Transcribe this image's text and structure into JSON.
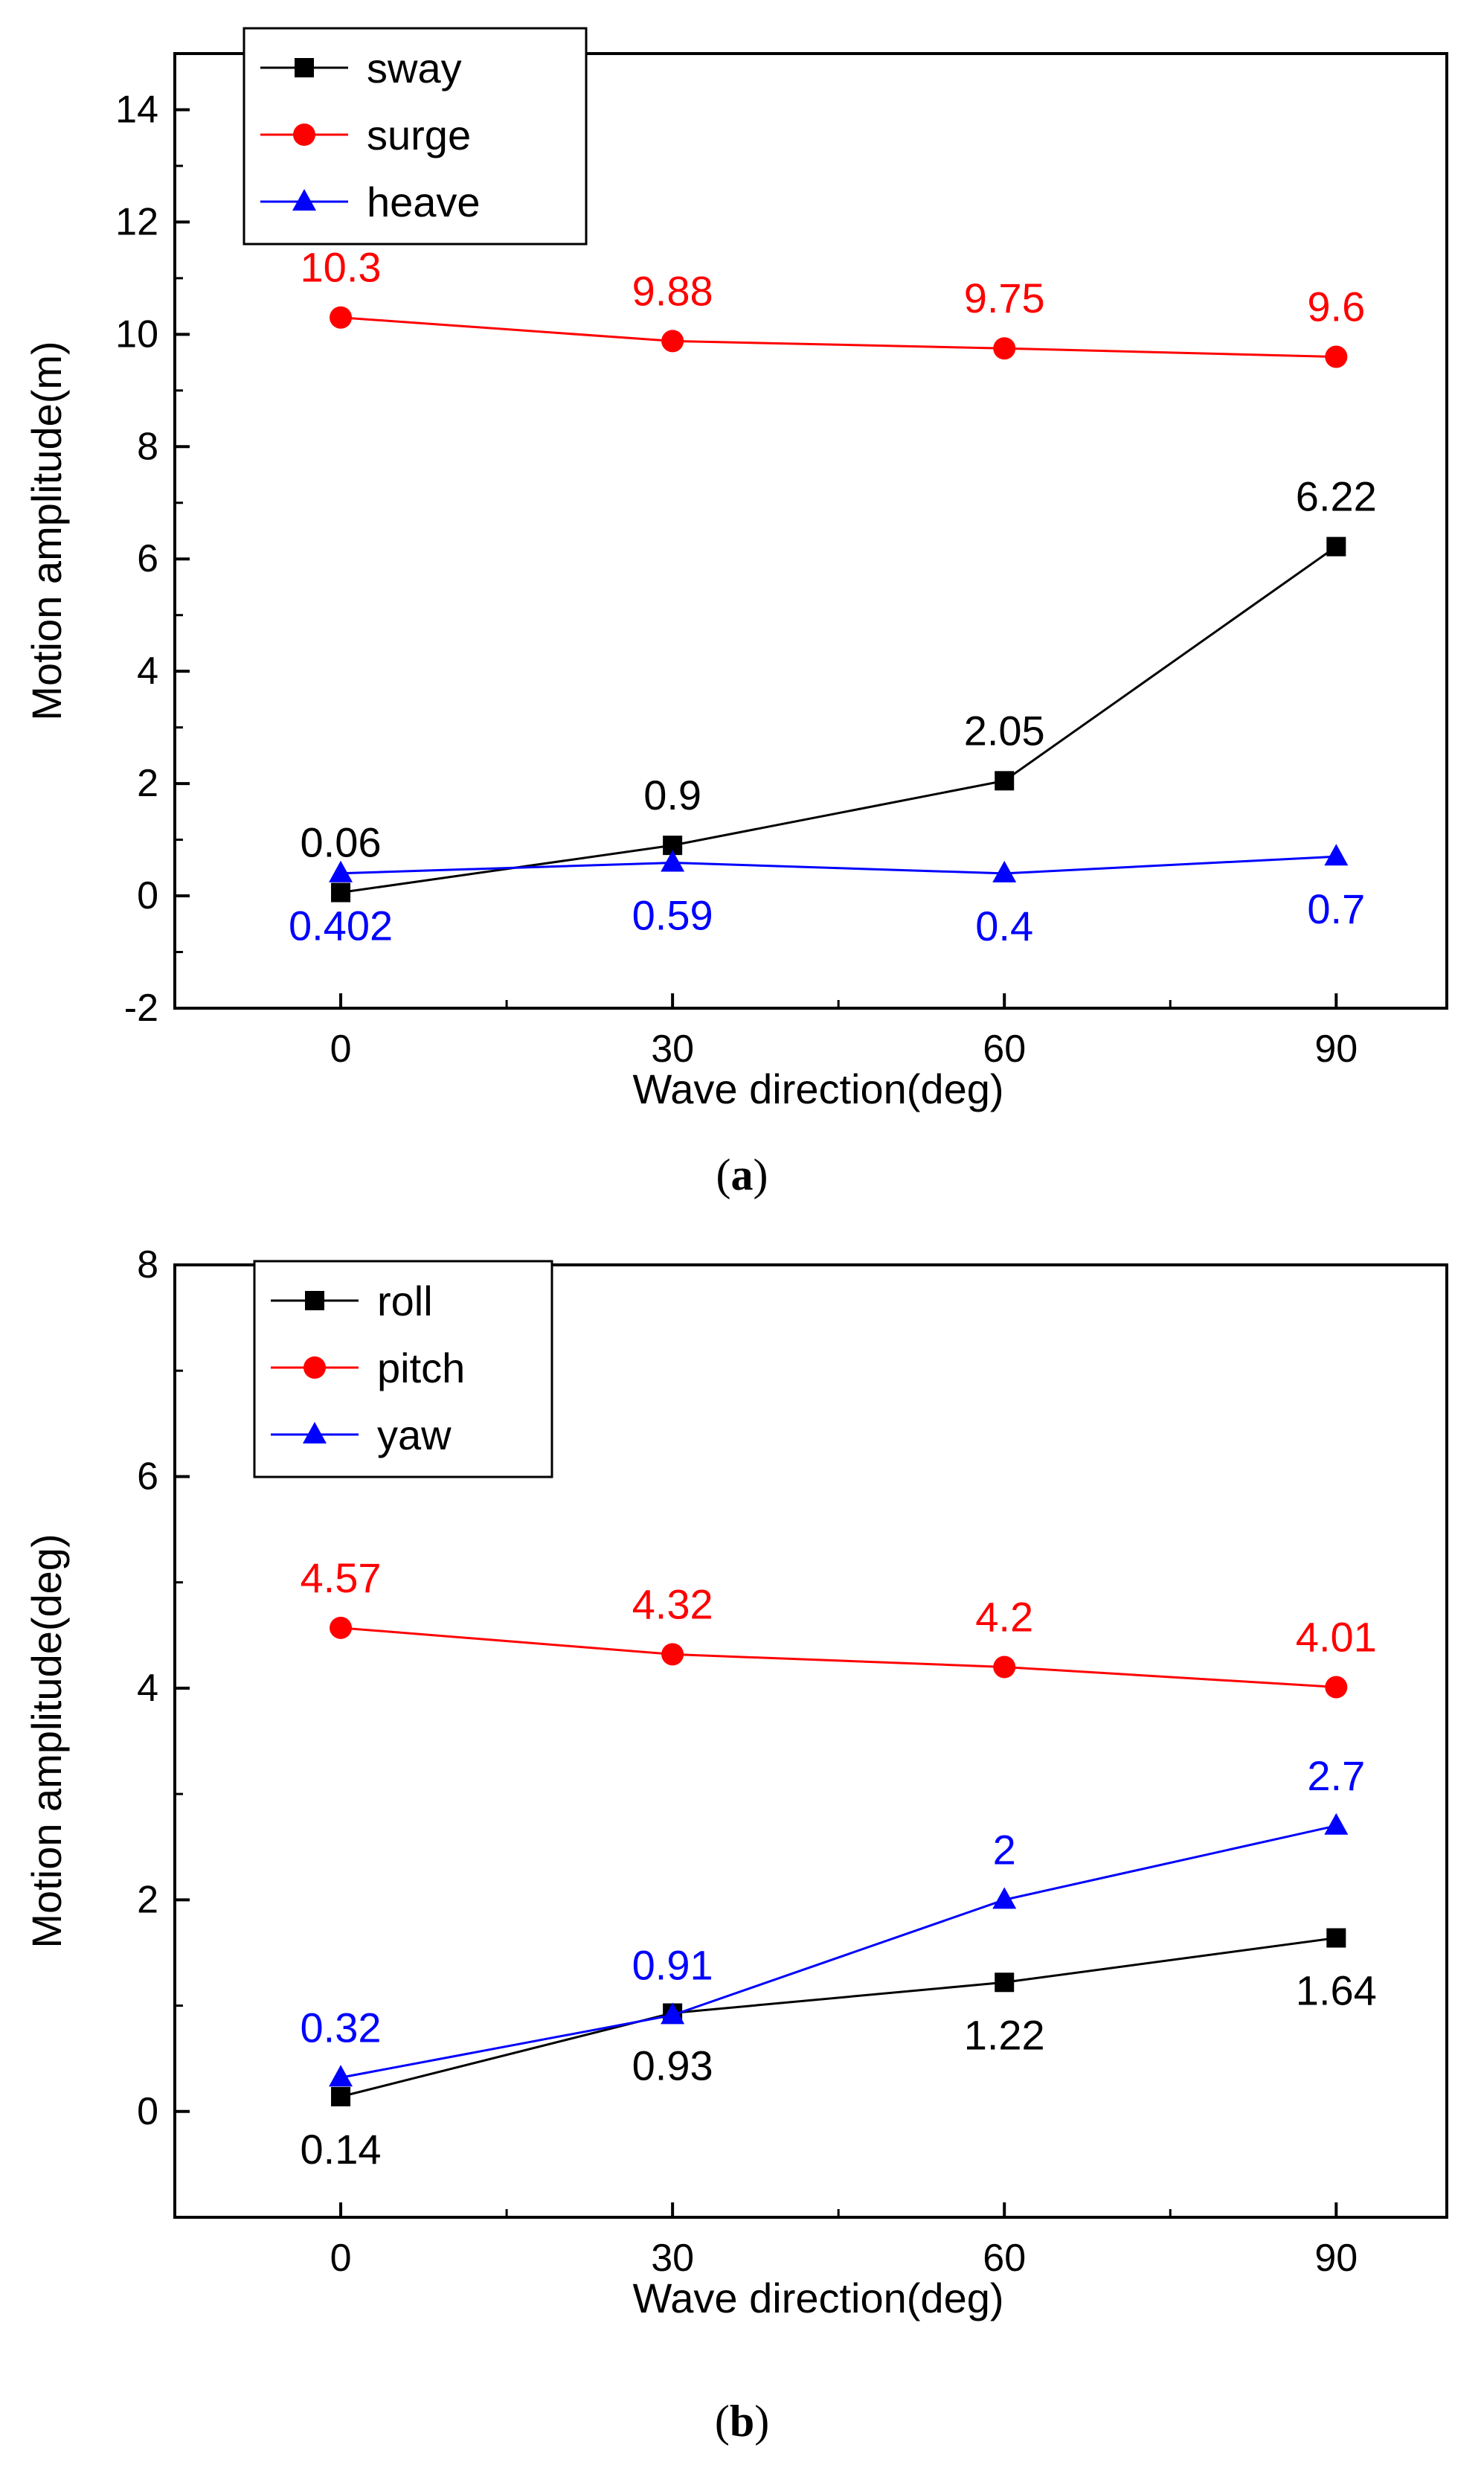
{
  "chart_data": [
    {
      "type": "line",
      "panel": "a",
      "caption_label": "a",
      "xlabel": "Wave direction(deg)",
      "ylabel": "Motion amplitude(m)",
      "x": [
        0,
        30,
        60,
        90
      ],
      "xticks": [
        "0",
        "30",
        "60",
        "90"
      ],
      "xlim": [
        -15,
        100
      ],
      "ylim": [
        -2,
        15
      ],
      "yticks": [
        "-2",
        "0",
        "2",
        "4",
        "6",
        "8",
        "10",
        "12",
        "14"
      ],
      "legend_position": "top-left",
      "series": [
        {
          "name": "sway",
          "marker": "square",
          "color": "#000000",
          "values": [
            0.06,
            0.9,
            2.05,
            6.22
          ],
          "labels": [
            "0.06",
            "0.9",
            "2.05",
            "6.22"
          ],
          "label_side": [
            "above",
            "above",
            "above",
            "above"
          ]
        },
        {
          "name": "surge",
          "marker": "circle",
          "color": "#ff0000",
          "values": [
            10.3,
            9.88,
            9.75,
            9.6
          ],
          "labels": [
            "10.3",
            "9.88",
            "9.75",
            "9.6"
          ],
          "label_side": [
            "above",
            "above",
            "above",
            "above"
          ]
        },
        {
          "name": "heave",
          "marker": "triangle",
          "color": "#0000ff",
          "values": [
            0.402,
            0.59,
            0.4,
            0.7
          ],
          "labels": [
            "0.402",
            "0.59",
            "0.4",
            "0.7"
          ],
          "label_side": [
            "below",
            "below",
            "below",
            "below"
          ]
        }
      ]
    },
    {
      "type": "line",
      "panel": "b",
      "caption_label": "b",
      "xlabel": "Wave direction(deg)",
      "ylabel": "Motion amplitude(deg)",
      "x": [
        0,
        30,
        60,
        90
      ],
      "xticks": [
        "0",
        "30",
        "60",
        "90"
      ],
      "xlim": [
        -15,
        100
      ],
      "ylim": [
        -1,
        8
      ],
      "yticks": [
        "0",
        "2",
        "4",
        "6",
        "8"
      ],
      "legend_position": "top-left",
      "series": [
        {
          "name": "roll",
          "marker": "square",
          "color": "#000000",
          "values": [
            0.14,
            0.93,
            1.22,
            1.64
          ],
          "labels": [
            "0.14",
            "0.93",
            "1.22",
            "1.64"
          ],
          "label_side": [
            "below",
            "below",
            "below",
            "below"
          ]
        },
        {
          "name": "pitch",
          "marker": "circle",
          "color": "#ff0000",
          "values": [
            4.57,
            4.32,
            4.2,
            4.01
          ],
          "labels": [
            "4.57",
            "4.32",
            "4.2",
            "4.01"
          ],
          "label_side": [
            "above",
            "above",
            "above",
            "above"
          ]
        },
        {
          "name": "yaw",
          "marker": "triangle",
          "color": "#0000ff",
          "values": [
            0.32,
            0.91,
            2,
            2.7
          ],
          "labels": [
            "0.32",
            "0.91",
            "2",
            "2.7"
          ],
          "label_side": [
            "above",
            "above",
            "above",
            "above"
          ]
        }
      ]
    }
  ]
}
